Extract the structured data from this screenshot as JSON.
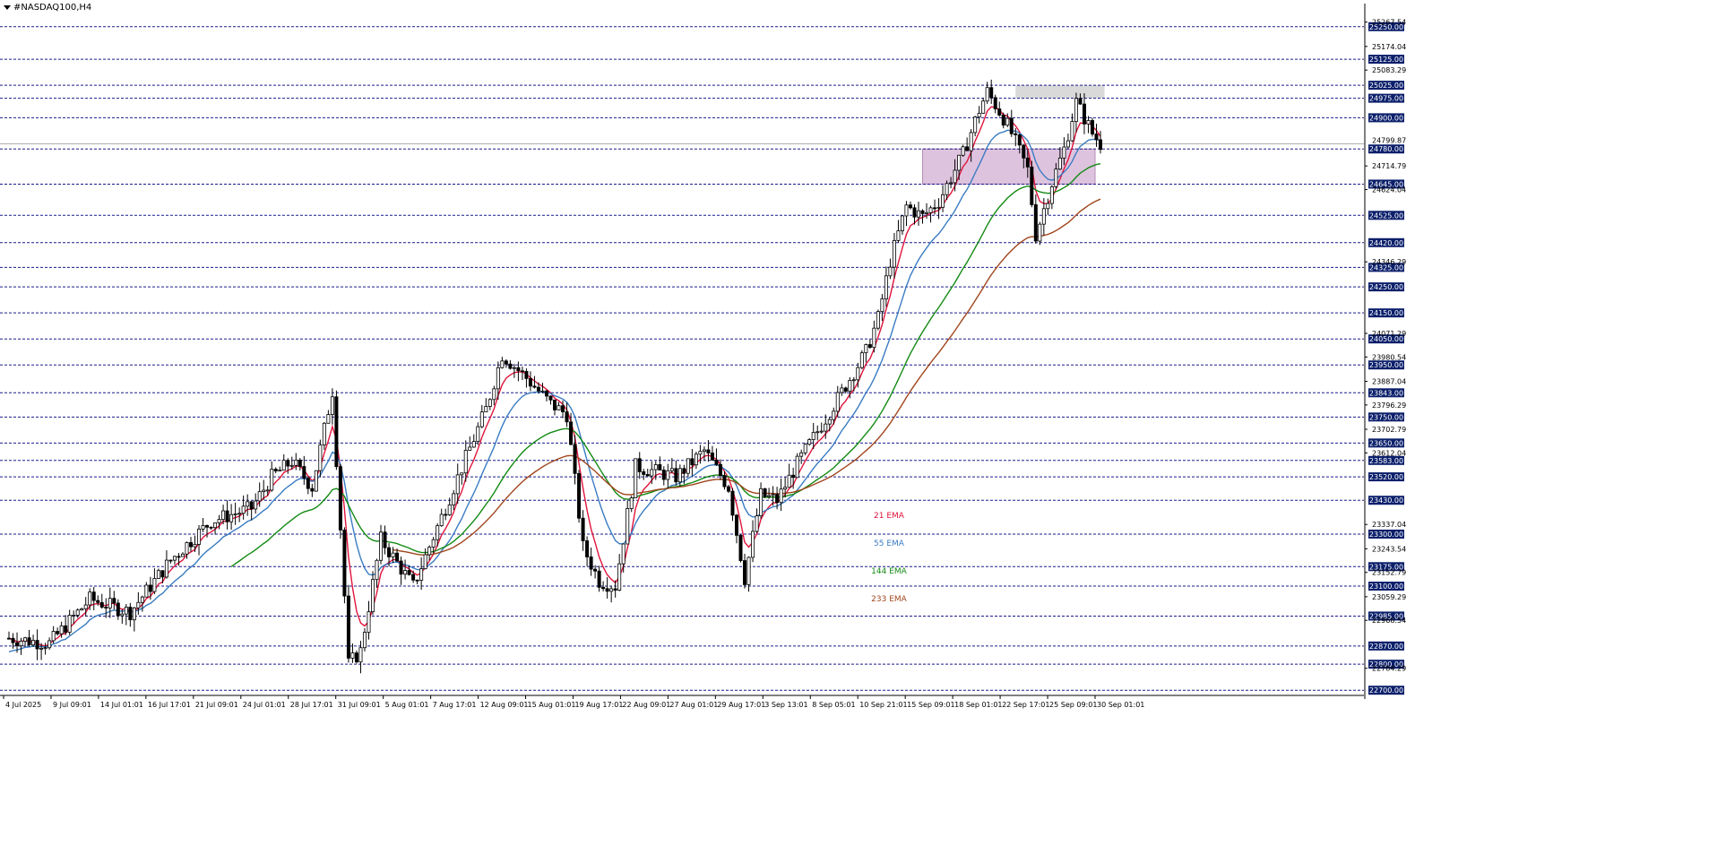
{
  "window": {
    "symbol_title": "#NASDAQ100,H4"
  },
  "colors": {
    "background": "#ffffff",
    "grid_dash": "#1a1a8c",
    "level_box_bg": "#0b1f6b",
    "level_box_text": "#ffffff",
    "candle": "#000000",
    "ema21": "#e0143c",
    "ema55": "#3a7cc2",
    "ema144": "#138a13",
    "ema233": "#a0461e",
    "zone_purple": "#d8b8d8",
    "zone_gray": "#d9d9d9",
    "current_price_line": "#b0b0b0"
  },
  "chart_data": {
    "type": "candlestick",
    "symbol": "#NASDAQ100",
    "timeframe": "H4",
    "ylim": [
      22680,
      25325
    ],
    "level_lines": [
      25250.0,
      25125.0,
      25025.0,
      24975.0,
      24900.0,
      24780.0,
      24645.0,
      24525.0,
      24420.0,
      24325.0,
      24250.0,
      24150.0,
      24050.0,
      23950.0,
      23843.0,
      23750.0,
      23650.0,
      23583.0,
      23520.0,
      23430.0,
      23300.0,
      23175.0,
      23100.0,
      22985.0,
      22870.0,
      22800.0,
      22700.0
    ],
    "price_scale_ticks": [
      25267.54,
      25174.04,
      25083.29,
      24714.79,
      24624.04,
      24346.29,
      24071.29,
      23980.54,
      23887.04,
      23796.29,
      23702.79,
      23612.04,
      23337.04,
      23243.54,
      23152.79,
      23059.29,
      22968.54,
      22784.29
    ],
    "current_price_label": "24799.87",
    "x_tick_labels": [
      "4 Jul 2025",
      "9 Jul 09:01",
      "14 Jul 01:01",
      "16 Jul 17:01",
      "21 Jul 09:01",
      "24 Jul 01:01",
      "28 Jul 17:01",
      "31 Jul 09:01",
      "5 Aug 01:01",
      "7 Aug 17:01",
      "12 Aug 09:01",
      "15 Aug 01:01",
      "19 Aug 17:01",
      "22 Aug 09:01",
      "27 Aug 01:01",
      "29 Aug 17:01",
      "3 Sep 13:01",
      "8 Sep 05:01",
      "10 Sep 21:01",
      "15 Sep 09:01",
      "18 Sep 01:01",
      "22 Sep 17:01",
      "25 Sep 09:01",
      "30 Sep 01:01"
    ],
    "series": [
      {
        "name": "21 EMA",
        "color": "#e0143c"
      },
      {
        "name": "55 EMA",
        "color": "#3a7cc2"
      },
      {
        "name": "144 EMA",
        "color": "#138a13"
      },
      {
        "name": "233 EMA",
        "color": "#a0461e"
      }
    ],
    "zones": [
      {
        "type": "supply",
        "color": "#d8b8d8",
        "from_price": 24645,
        "to_price": 24780,
        "start_date": "15 Sep",
        "end_date": "30 Sep"
      },
      {
        "type": "resistance",
        "color": "#d9d9d9",
        "from_price": 24975,
        "to_price": 25025,
        "start_date": "22 Sep",
        "end_date": "30 Sep"
      }
    ],
    "price_path": [
      [
        0,
        22900
      ],
      [
        10,
        22880
      ],
      [
        20,
        23050
      ],
      [
        30,
        23000
      ],
      [
        40,
        23200
      ],
      [
        50,
        23350
      ],
      [
        60,
        23400
      ],
      [
        65,
        23520
      ],
      [
        70,
        23580
      ],
      [
        75,
        23480
      ],
      [
        80,
        23850
      ],
      [
        84,
        22800
      ],
      [
        87,
        22850
      ],
      [
        92,
        23280
      ],
      [
        100,
        23100
      ],
      [
        110,
        23480
      ],
      [
        118,
        23780
      ],
      [
        122,
        23990
      ],
      [
        128,
        23900
      ],
      [
        134,
        23800
      ],
      [
        138,
        23760
      ],
      [
        142,
        23250
      ],
      [
        146,
        23120
      ],
      [
        150,
        23100
      ],
      [
        155,
        23560
      ],
      [
        165,
        23520
      ],
      [
        172,
        23620
      ],
      [
        178,
        23480
      ],
      [
        182,
        23130
      ],
      [
        186,
        23450
      ],
      [
        190,
        23430
      ],
      [
        195,
        23570
      ],
      [
        205,
        23820
      ],
      [
        212,
        24000
      ],
      [
        215,
        24130
      ],
      [
        218,
        24350
      ],
      [
        222,
        24560
      ],
      [
        226,
        24520
      ],
      [
        230,
        24580
      ],
      [
        236,
        24760
      ],
      [
        240,
        24930
      ],
      [
        242,
        25000
      ],
      [
        246,
        24900
      ],
      [
        248,
        24840
      ],
      [
        252,
        24700
      ],
      [
        254,
        24450
      ],
      [
        258,
        24650
      ],
      [
        261,
        24780
      ],
      [
        264,
        24960
      ],
      [
        268,
        24840
      ],
      [
        270,
        24800
      ]
    ],
    "legend_placement": "center-bottom"
  }
}
